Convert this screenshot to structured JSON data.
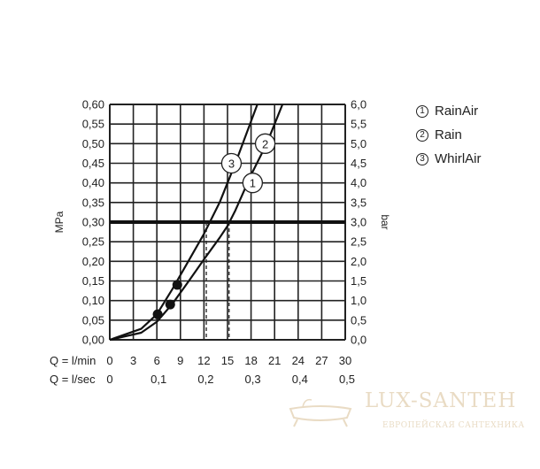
{
  "chart_data": {
    "type": "line",
    "left_axis": {
      "label": "MPa",
      "ticks": [
        "0,00",
        "0,05",
        "0,10",
        "0,15",
        "0,20",
        "0,25",
        "0,30",
        "0,35",
        "0,40",
        "0,45",
        "0,50",
        "0,55",
        "0,60"
      ],
      "range": [
        0,
        0.6
      ]
    },
    "right_axis": {
      "label": "bar",
      "ticks": [
        "0,0",
        "0,5",
        "1,0",
        "1,5",
        "2,0",
        "2,5",
        "3,0",
        "3,5",
        "4,0",
        "4,5",
        "5,0",
        "5,5",
        "6,0"
      ],
      "range": [
        0,
        6
      ]
    },
    "x_axis_lmin": {
      "label": "Q = l/min",
      "ticks": [
        "0",
        "3",
        "6",
        "9",
        "12",
        "15",
        "18",
        "21",
        "24",
        "27",
        "30"
      ],
      "range": [
        0,
        30
      ]
    },
    "x_axis_lsec": {
      "label": "Q = l/sec",
      "ticks": [
        "0",
        "0,1",
        "0,2",
        "0,3",
        "0,4",
        "0,5"
      ]
    },
    "grid": true,
    "reference_line": {
      "pressure_mpa": 0.3
    },
    "series": [
      {
        "marker": "1",
        "name": "RainAir",
        "x": [
          0,
          4,
          6,
          8,
          10,
          12,
          14,
          15,
          16,
          18,
          20,
          22
        ],
        "y": [
          0,
          0.018,
          0.046,
          0.092,
          0.148,
          0.205,
          0.26,
          0.29,
          0.33,
          0.42,
          0.5,
          0.6
        ],
        "label_at": [
          18.2,
          0.4
        ]
      },
      {
        "marker": "2",
        "name": "Rain",
        "x": [
          0,
          4,
          6,
          8,
          10,
          12,
          14,
          15,
          16,
          18,
          20,
          22
        ],
        "y": [
          0,
          0.018,
          0.046,
          0.092,
          0.148,
          0.205,
          0.26,
          0.29,
          0.33,
          0.42,
          0.5,
          0.6
        ],
        "label_at": [
          19.8,
          0.5
        ]
      },
      {
        "marker": "3",
        "name": "WhirlAir",
        "x": [
          0,
          4,
          6,
          8,
          10,
          12,
          14,
          16,
          18.8
        ],
        "y": [
          0,
          0.028,
          0.065,
          0.13,
          0.2,
          0.27,
          0.35,
          0.45,
          0.6
        ],
        "label_at": [
          15.5,
          0.45
        ]
      }
    ],
    "operating_points": [
      {
        "x": 6.1,
        "y": 0.065
      },
      {
        "x": 7.7,
        "y": 0.09
      },
      {
        "x": 8.6,
        "y": 0.14
      }
    ],
    "flow_at_reference": [
      12.3,
      15.2
    ]
  },
  "legend": [
    {
      "num": "1",
      "label": "RainAir"
    },
    {
      "num": "2",
      "label": "Rain"
    },
    {
      "num": "3",
      "label": "WhirlAir"
    }
  ],
  "watermark": {
    "text": "LUX-SANTEH",
    "subtitle": "ЕВРОПЕЙСКАЯ САНТЕХНИКА"
  }
}
